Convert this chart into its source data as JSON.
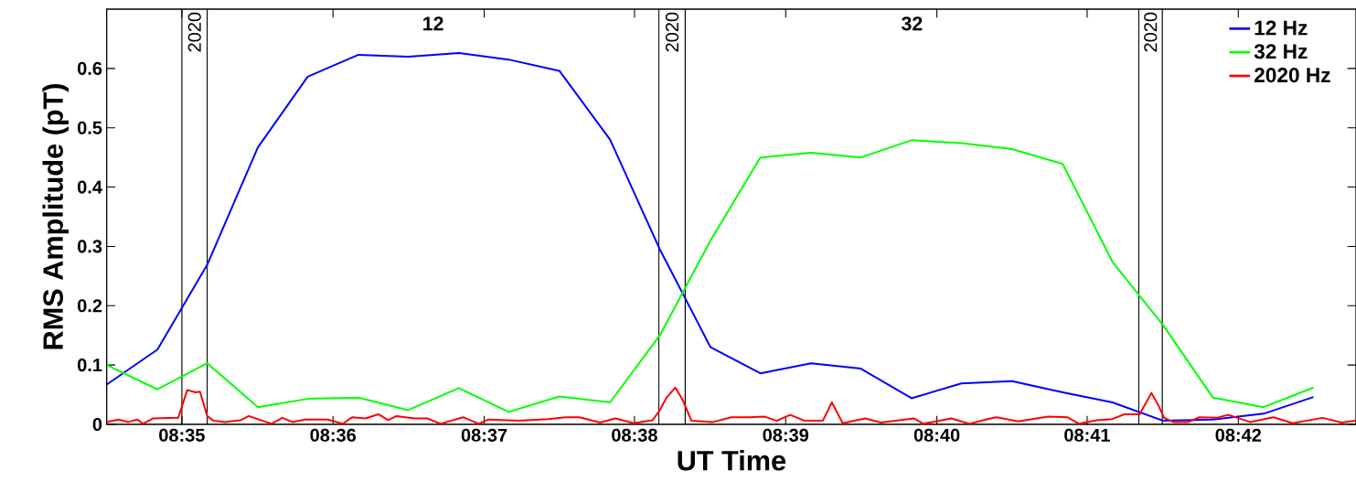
{
  "chart_data": {
    "type": "line",
    "xlabel": "UT Time",
    "ylabel": "RMS Amplitude (pT)",
    "xlim": [
      8.575,
      8.713
    ],
    "ylim": [
      0,
      0.7
    ],
    "xticks": [
      {
        "value": 8.5833,
        "label": "08:35"
      },
      {
        "value": 8.6,
        "label": "08:36"
      },
      {
        "value": 8.6167,
        "label": "08:37"
      },
      {
        "value": 8.6333,
        "label": "08:38"
      },
      {
        "value": 8.65,
        "label": "08:39"
      },
      {
        "value": 8.6667,
        "label": "08:40"
      },
      {
        "value": 8.6833,
        "label": "08:41"
      },
      {
        "value": 8.7,
        "label": "08:42"
      }
    ],
    "yticks": [
      0,
      0.1,
      0.2,
      0.3,
      0.4,
      0.5,
      0.6
    ],
    "legend": "top right",
    "line_style": "solid",
    "x": [
      8.575,
      8.5806,
      8.5861,
      8.5917,
      8.5972,
      8.6028,
      8.6083,
      8.6139,
      8.6194,
      8.625,
      8.6306,
      8.6361,
      8.6417,
      8.6472,
      8.6528,
      8.6583,
      8.6639,
      8.6694,
      8.675,
      8.6806,
      8.6861,
      8.6917,
      8.6972,
      8.7028,
      8.7083
    ],
    "series": [
      {
        "name": "12 Hz",
        "color": "#0000ff",
        "values": [
          0.067,
          0.126,
          0.269,
          0.467,
          0.586,
          0.623,
          0.62,
          0.626,
          0.615,
          0.596,
          0.48,
          0.295,
          0.13,
          0.086,
          0.103,
          0.094,
          0.044,
          0.069,
          0.073,
          0.054,
          0.037,
          0.006,
          0.008,
          0.018,
          0.046
        ]
      },
      {
        "name": "32 Hz",
        "color": "#00ff00",
        "values": [
          0.1,
          0.059,
          0.103,
          0.029,
          0.043,
          0.045,
          0.024,
          0.061,
          0.021,
          0.047,
          0.037,
          0.15,
          0.31,
          0.45,
          0.458,
          0.45,
          0.479,
          0.474,
          0.464,
          0.439,
          0.274,
          0.167,
          0.045,
          0.029,
          0.062
        ]
      },
      {
        "name": "2020 Hz",
        "color": "#ff0000",
        "x": [
          8.575,
          8.5763,
          8.5774,
          8.5784,
          8.579,
          8.5801,
          8.5829,
          8.5839,
          8.5848,
          8.5853,
          8.5861,
          8.5868,
          8.5881,
          8.5898,
          8.5907,
          8.5932,
          8.5944,
          8.5955,
          8.5969,
          8.5994,
          8.6011,
          8.6021,
          8.6036,
          8.605,
          8.6061,
          8.607,
          8.609,
          8.6104,
          8.6119,
          8.613,
          8.6144,
          8.6161,
          8.6171,
          8.6205,
          8.6238,
          8.6257,
          8.6272,
          8.6295,
          8.6312,
          8.6332,
          8.6353,
          8.6361,
          8.6368,
          8.6378,
          8.6386,
          8.6396,
          8.642,
          8.644,
          8.646,
          8.6477,
          8.649,
          8.6505,
          8.6521,
          8.6541,
          8.6551,
          8.6563,
          8.6588,
          8.6605,
          8.6642,
          8.6652,
          8.6683,
          8.6703,
          8.6723,
          8.6733,
          8.6757,
          8.679,
          8.6811,
          8.6824,
          8.6844,
          8.6861,
          8.6874,
          8.6891,
          8.6904,
          8.6911,
          8.6918,
          8.6928,
          8.6945,
          8.6957,
          8.6976,
          8.6989,
          8.7013,
          8.7039,
          8.706,
          8.7093,
          8.7114,
          8.713
        ],
        "values": [
          0.004,
          0.008,
          0.004,
          0.008,
          0.001,
          0.01,
          0.011,
          0.058,
          0.054,
          0.055,
          0.014,
          0.006,
          0.004,
          0.007,
          0.014,
          0.001,
          0.011,
          0.004,
          0.008,
          0.008,
          0.001,
          0.012,
          0.01,
          0.017,
          0.007,
          0.014,
          0.01,
          0.01,
          0.001,
          0.006,
          0.012,
          0.001,
          0.008,
          0.006,
          0.009,
          0.012,
          0.012,
          0.003,
          0.01,
          0.002,
          0.007,
          0.024,
          0.044,
          0.062,
          0.042,
          0.006,
          0.004,
          0.012,
          0.012,
          0.013,
          0.006,
          0.016,
          0.006,
          0.006,
          0.037,
          0.002,
          0.01,
          0.003,
          0.01,
          0.001,
          0.01,
          0.001,
          0.009,
          0.012,
          0.005,
          0.013,
          0.012,
          0.001,
          0.007,
          0.009,
          0.017,
          0.017,
          0.053,
          0.034,
          0.011,
          0.004,
          0.004,
          0.012,
          0.011,
          0.016,
          0.004,
          0.012,
          0.002,
          0.011,
          0.003,
          0.006
        ]
      }
    ],
    "ref_lines": [
      {
        "axis": "x",
        "value": 8.5833,
        "color": "#000000"
      },
      {
        "axis": "x",
        "value": 8.5861,
        "color": "#000000"
      },
      {
        "axis": "x",
        "value": 8.636,
        "color": "#000000"
      },
      {
        "axis": "x",
        "value": 8.6389,
        "color": "#000000"
      },
      {
        "axis": "x",
        "value": 8.689,
        "color": "#000000"
      },
      {
        "axis": "x",
        "value": 8.6916,
        "color": "#000000"
      }
    ],
    "annotations": [
      "2020",
      "12",
      "2020",
      "32",
      "2020"
    ]
  }
}
